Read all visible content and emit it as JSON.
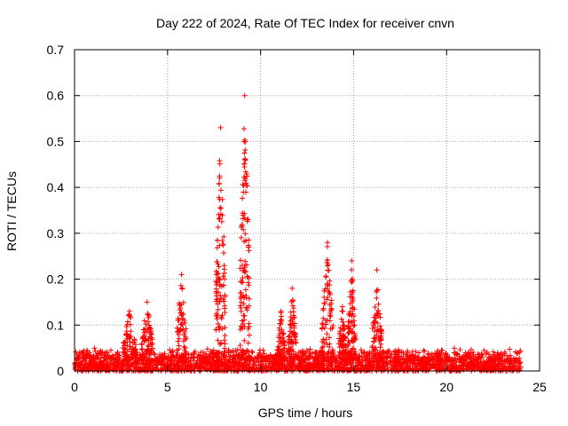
{
  "chart_data": {
    "type": "scatter",
    "title": "Day 222 of 2024, Rate Of TEC Index for receiver cnvn",
    "xlabel": "GPS time / hours",
    "ylabel": "ROTI / TECUs",
    "xlim": [
      0,
      25
    ],
    "ylim": [
      0,
      0.7
    ],
    "xticks": [
      0,
      5,
      10,
      15,
      20,
      25
    ],
    "yticks": [
      0,
      0.1,
      0.2,
      0.3,
      0.4,
      0.5,
      0.6,
      0.7
    ],
    "grid": true,
    "marker": "+",
    "color": "#ff0000",
    "series": [
      {
        "name": "ROTI",
        "description": "dense band of points 0.0–0.05 TECU over 0–24 h with spikes listed below",
        "baseline_range": [
          0.0,
          0.05
        ],
        "time_range": [
          0.0,
          24.0
        ],
        "spikes": [
          {
            "x": [
              2.6,
              3.3
            ],
            "peak": 0.13
          },
          {
            "x": [
              3.6,
              4.2
            ],
            "peak": 0.15
          },
          {
            "x": [
              5.5,
              6.0
            ],
            "peak": 0.21
          },
          {
            "x": [
              7.6,
              8.1
            ],
            "peak": 0.53
          },
          {
            "x": [
              8.9,
              9.4
            ],
            "peak": 0.6
          },
          {
            "x": [
              10.9,
              11.3
            ],
            "peak": 0.13
          },
          {
            "x": [
              11.5,
              11.9
            ],
            "peak": 0.18
          },
          {
            "x": [
              13.3,
              13.9
            ],
            "peak": 0.28
          },
          {
            "x": [
              14.2,
              14.6
            ],
            "peak": 0.14
          },
          {
            "x": [
              14.7,
              15.1
            ],
            "peak": 0.24
          },
          {
            "x": [
              16.0,
              16.5
            ],
            "peak": 0.22
          }
        ]
      }
    ]
  }
}
